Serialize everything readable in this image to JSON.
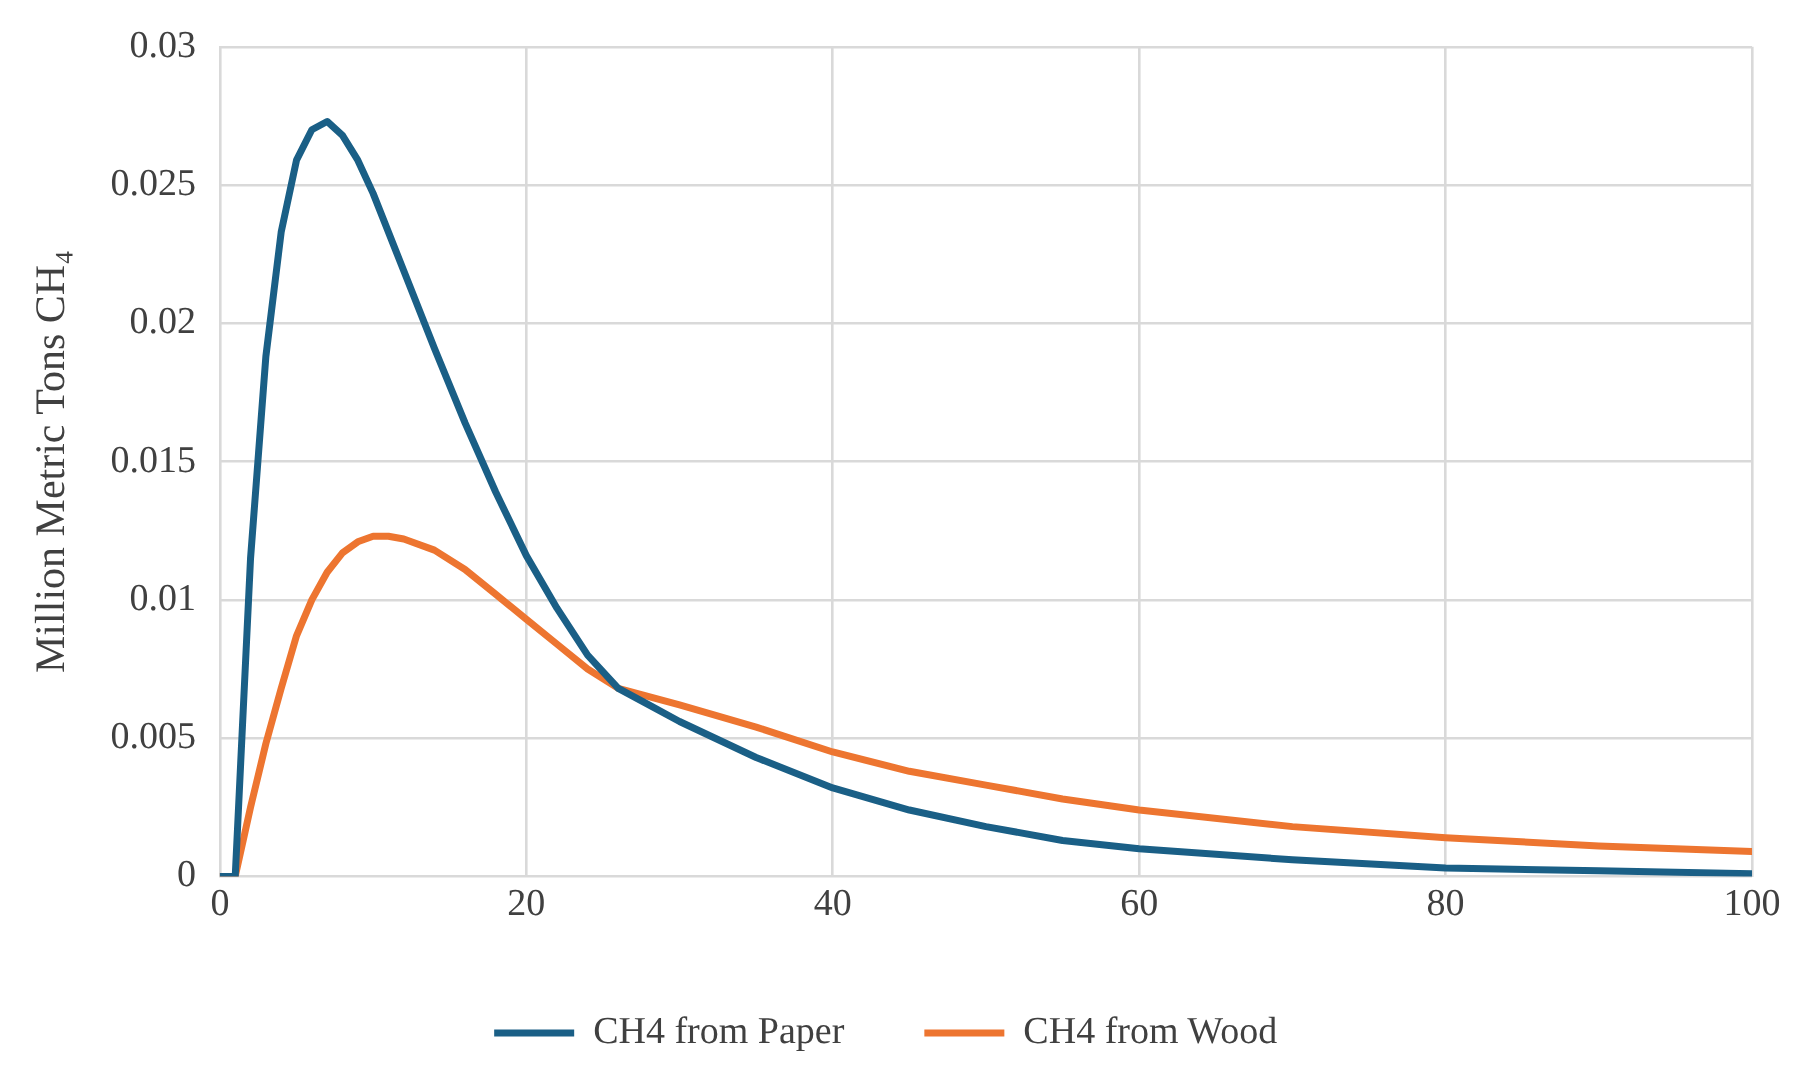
{
  "chart_data": {
    "type": "line",
    "ylabel": "Million Metric Tons CH₄",
    "xlim": [
      0,
      100
    ],
    "xticks": [
      0,
      20,
      40,
      60,
      80,
      100
    ],
    "ylim": [
      0,
      0.03
    ],
    "yticks": [
      0,
      0.005,
      0.01,
      0.015,
      0.02,
      0.025,
      0.03
    ],
    "grid": true,
    "legend": "bottom",
    "marker": "none",
    "line_style": "solid",
    "series": [
      {
        "name": "CH4 from Paper",
        "color": "#1a5f86",
        "x": [
          0,
          1,
          2,
          3,
          4,
          5,
          6,
          7,
          8,
          9,
          10,
          12,
          14,
          16,
          18,
          20,
          22,
          24,
          26,
          28,
          30,
          35,
          40,
          45,
          50,
          55,
          60,
          70,
          80,
          90,
          100
        ],
        "values": [
          0,
          0,
          0.0115,
          0.0188,
          0.0233,
          0.0259,
          0.027,
          0.0273,
          0.0268,
          0.0259,
          0.0247,
          0.0219,
          0.0191,
          0.0164,
          0.0139,
          0.0116,
          0.0097,
          0.008,
          0.0068,
          0.0062,
          0.0056,
          0.0043,
          0.0032,
          0.0024,
          0.0018,
          0.0013,
          0.001,
          0.0006,
          0.0003,
          0.0002,
          0.0001
        ]
      },
      {
        "name": "CH4 from Wood",
        "color": "#ed7530",
        "x": [
          0,
          1,
          2,
          3,
          4,
          5,
          6,
          7,
          8,
          9,
          10,
          11,
          12,
          14,
          16,
          18,
          20,
          22,
          24,
          26,
          30,
          35,
          40,
          45,
          50,
          55,
          60,
          70,
          80,
          90,
          100
        ],
        "values": [
          0,
          0,
          0.0025,
          0.0048,
          0.0068,
          0.0087,
          0.01,
          0.011,
          0.0117,
          0.0121,
          0.0123,
          0.0123,
          0.0122,
          0.0118,
          0.0111,
          0.0102,
          0.0093,
          0.0084,
          0.0075,
          0.0068,
          0.0062,
          0.0054,
          0.0045,
          0.0038,
          0.0033,
          0.0028,
          0.0024,
          0.0018,
          0.0014,
          0.0011,
          0.0009
        ]
      }
    ]
  }
}
